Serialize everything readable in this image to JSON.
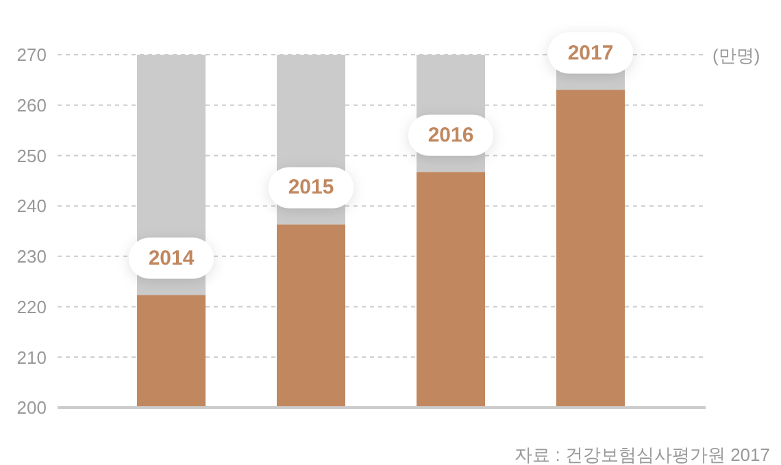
{
  "chart_data": {
    "type": "bar",
    "categories": [
      "2014",
      "2015",
      "2016",
      "2017"
    ],
    "series": [
      {
        "color": "#c1875f",
        "values": [
          222.3,
          236.3,
          246.7,
          263
        ]
      }
    ],
    "ylabel": "(만명)",
    "ylim": [
      200,
      270
    ],
    "yticks": [
      200,
      210,
      220,
      230,
      240,
      250,
      260,
      270
    ],
    "grid": "y",
    "annotations": [
      "자료 : 건강보험심사평가원 2017"
    ]
  }
}
